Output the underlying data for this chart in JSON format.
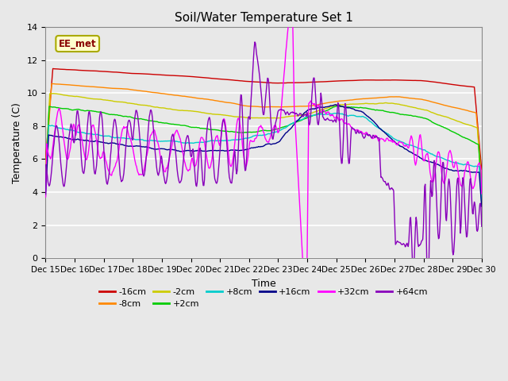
{
  "title": "Soil/Water Temperature Set 1",
  "xlabel": "Time",
  "ylabel": "Temperature (C)",
  "xlim": [
    0,
    15
  ],
  "ylim": [
    0,
    14
  ],
  "yticks": [
    0,
    2,
    4,
    6,
    8,
    10,
    12,
    14
  ],
  "xtick_labels": [
    "Dec 15",
    "Dec 16",
    "Dec 17",
    "Dec 18",
    "Dec 19",
    "Dec 20",
    "Dec 21",
    "Dec 22",
    "Dec 23",
    "Dec 24",
    "Dec 25",
    "Dec 26",
    "Dec 27",
    "Dec 28",
    "Dec 29",
    "Dec 30"
  ],
  "annotation_text": "EE_met",
  "annotation_box_color": "#ffffcc",
  "annotation_box_edge": "#aaaa00",
  "annotation_text_color": "#880000",
  "colors": {
    "-16cm": "#cc0000",
    "-8cm": "#ff8800",
    "-2cm": "#cccc00",
    "+2cm": "#00cc00",
    "+8cm": "#00cccc",
    "+16cm": "#000088",
    "+32cm": "#ff00ff",
    "+64cm": "#8800bb"
  },
  "background_color": "#e8e8e8",
  "grid_color": "#ffffff",
  "legend_order": [
    "-16cm",
    "-8cm",
    "-2cm",
    "+2cm",
    "+8cm",
    "+16cm",
    "+32cm",
    "+64cm"
  ]
}
